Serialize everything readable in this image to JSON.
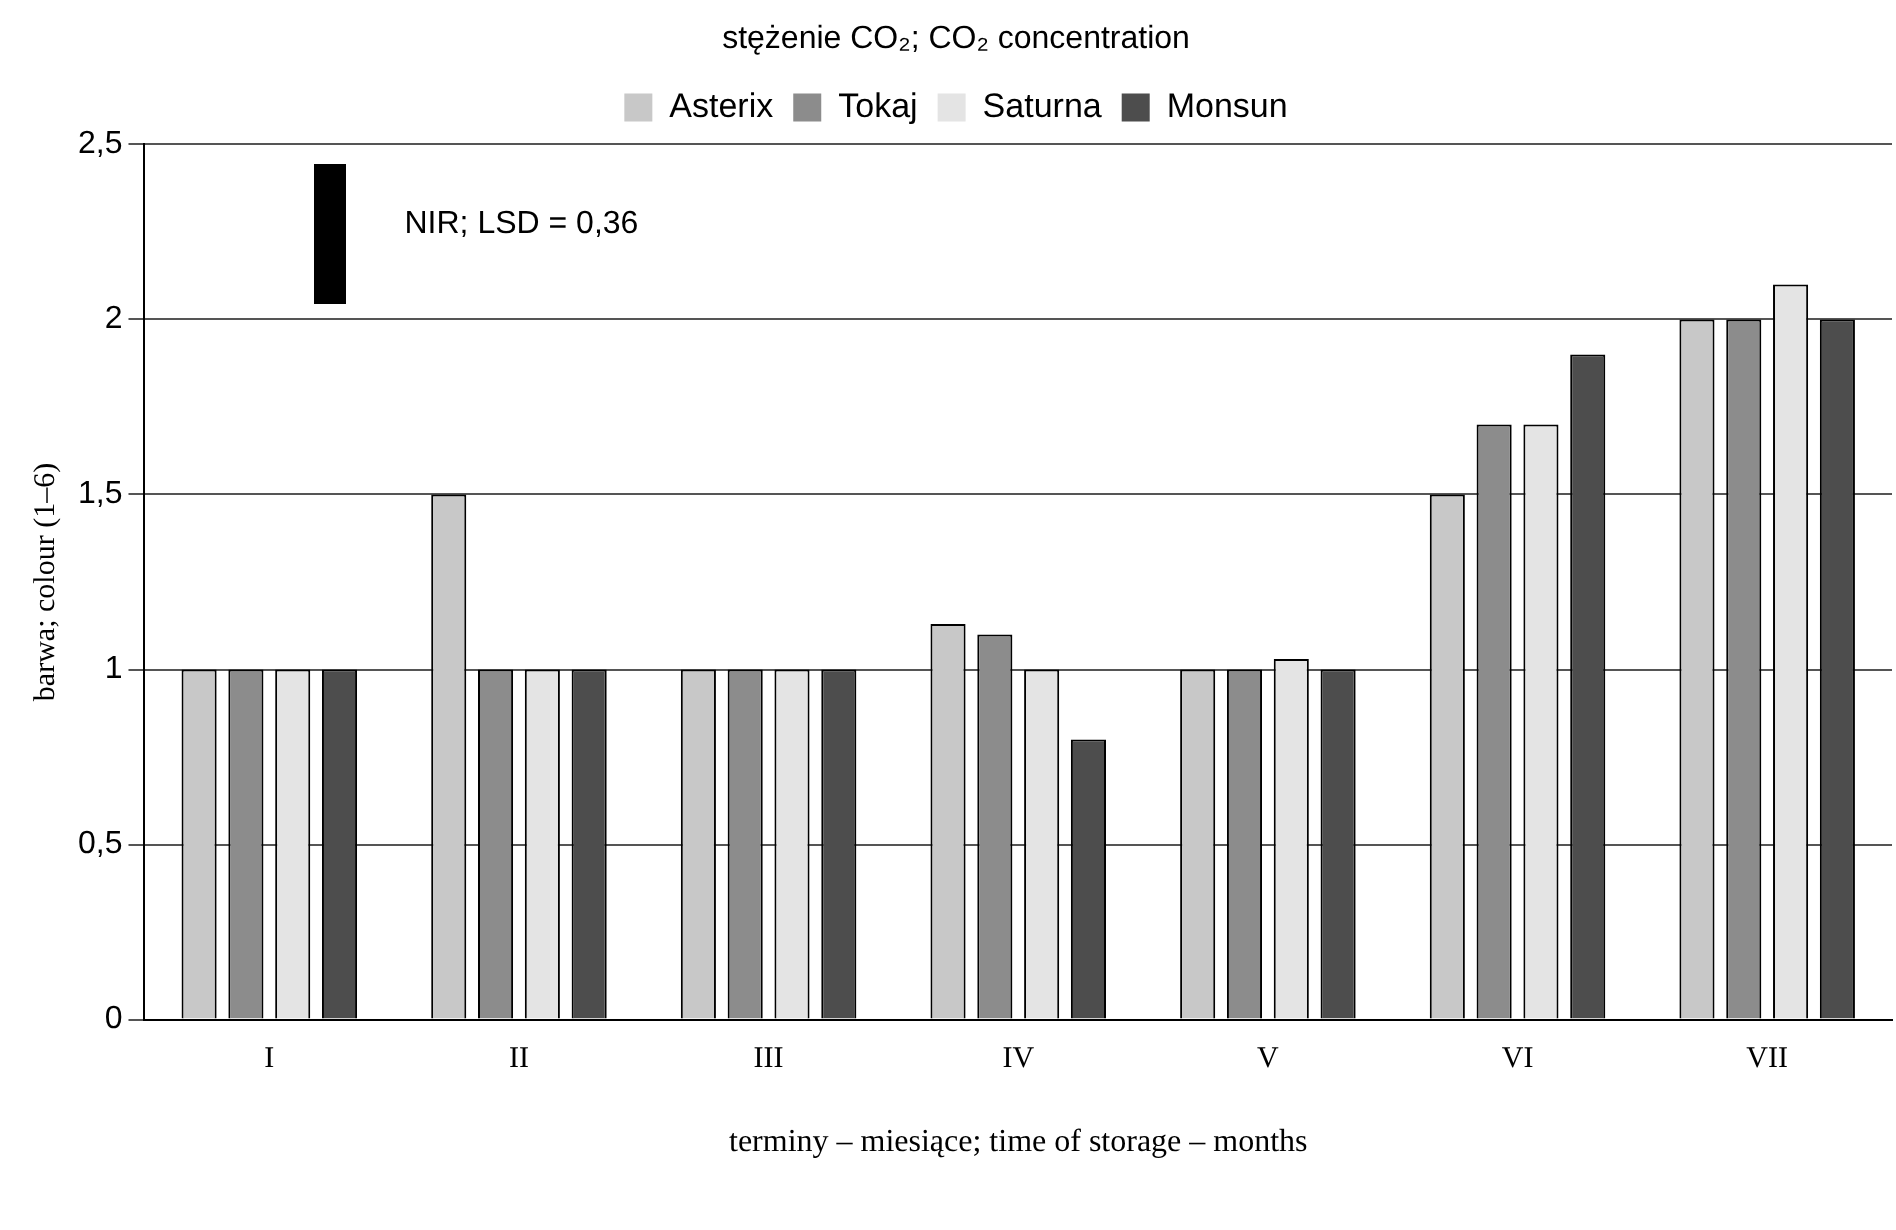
{
  "chart_data": {
    "type": "bar",
    "title": "stężenie CO₂; CO₂ concentration",
    "xlabel": "terminy – miesiące; time of storage – months",
    "ylabel": "barwa; colour (1–6)",
    "categories": [
      "I",
      "II",
      "III",
      "IV",
      "V",
      "VI",
      "VII"
    ],
    "series": [
      {
        "name": "Asterix",
        "color": "#c8c8c8",
        "values": [
          1,
          1.5,
          1,
          1.13,
          1,
          1.5,
          2
        ]
      },
      {
        "name": "Tokaj",
        "color": "#8c8c8c",
        "values": [
          1,
          1,
          1,
          1.1,
          1,
          1.7,
          2
        ]
      },
      {
        "name": "Saturna",
        "color": "#e4e4e4",
        "values": [
          1,
          1,
          1,
          1,
          1.03,
          1.7,
          2.1
        ]
      },
      {
        "name": "Monsun",
        "color": "#4d4d4d",
        "values": [
          1,
          1,
          1,
          0.8,
          1,
          1.9,
          2
        ]
      }
    ],
    "ylim": [
      0,
      2.5
    ],
    "yticks": [
      0,
      {
        "value": 0.5,
        "label": "0,5"
      },
      1,
      {
        "value": 1.5,
        "label": "1,5"
      },
      2,
      {
        "value": 2.5,
        "label": "2,5"
      }
    ],
    "grid": "y",
    "legend": "top",
    "annotations": [
      "NIR; LSD = 0,36"
    ]
  }
}
